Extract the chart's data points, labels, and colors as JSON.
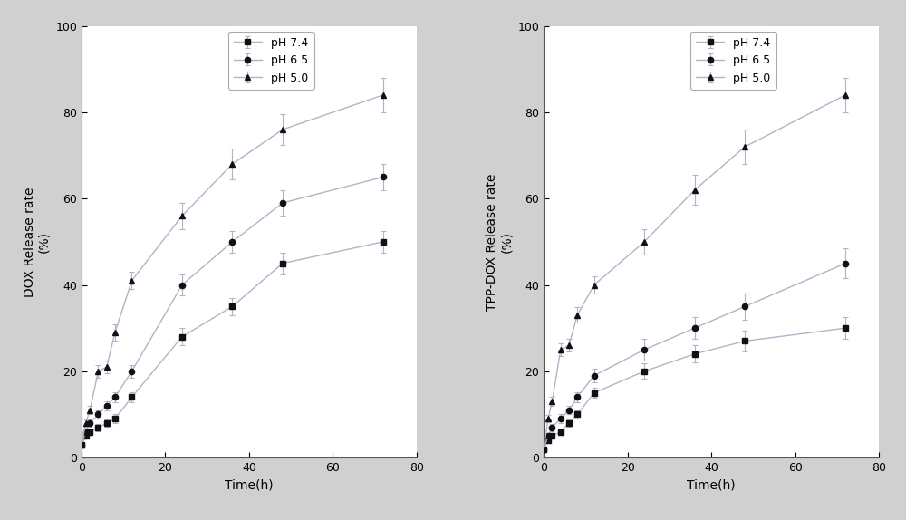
{
  "time_points": [
    0,
    1,
    2,
    4,
    6,
    8,
    12,
    24,
    36,
    48,
    72
  ],
  "dox_ph74_y": [
    3,
    5,
    6,
    7,
    8,
    9,
    14,
    28,
    35,
    45,
    50
  ],
  "dox_ph65_y": [
    3,
    6,
    8,
    10,
    12,
    14,
    20,
    40,
    50,
    59,
    65
  ],
  "dox_ph50_y": [
    3,
    8,
    11,
    20,
    21,
    29,
    41,
    56,
    68,
    76,
    84
  ],
  "dox_ph74_err": [
    0.4,
    0.6,
    0.6,
    0.8,
    0.8,
    1.0,
    1.2,
    2.0,
    2.0,
    2.5,
    2.5
  ],
  "dox_ph65_err": [
    0.4,
    0.6,
    0.8,
    1.0,
    1.0,
    1.2,
    1.5,
    2.5,
    2.5,
    3.0,
    3.0
  ],
  "dox_ph50_err": [
    0.4,
    0.8,
    1.0,
    1.5,
    1.5,
    1.8,
    2.0,
    3.0,
    3.5,
    3.5,
    4.0
  ],
  "tpp_ph74_y": [
    2,
    4,
    5,
    6,
    8,
    10,
    15,
    20,
    24,
    27,
    30
  ],
  "tpp_ph65_y": [
    2,
    5,
    7,
    9,
    11,
    14,
    19,
    25,
    30,
    35,
    45
  ],
  "tpp_ph50_y": [
    2,
    9,
    13,
    25,
    26,
    33,
    40,
    50,
    62,
    72,
    84
  ],
  "tpp_ph74_err": [
    0.4,
    0.6,
    0.6,
    0.8,
    0.8,
    1.0,
    1.2,
    1.8,
    2.0,
    2.5,
    2.5
  ],
  "tpp_ph65_err": [
    0.4,
    0.6,
    0.8,
    1.0,
    1.0,
    1.2,
    1.5,
    2.5,
    2.5,
    3.0,
    3.5
  ],
  "tpp_ph50_err": [
    0.4,
    0.8,
    1.0,
    1.5,
    1.5,
    1.8,
    2.0,
    3.0,
    3.5,
    4.0,
    4.0
  ],
  "line_color": "#b8b0c8",
  "marker_color": "#111111",
  "bg_color": "#d0d0d0",
  "plot_bg": "#ffffff",
  "ylim": [
    0,
    100
  ],
  "xlim": [
    0,
    80
  ],
  "xticks": [
    0,
    20,
    40,
    60,
    80
  ],
  "yticks": [
    0,
    20,
    40,
    60,
    80,
    100
  ],
  "xlabel": "Time(h)",
  "ylabel_left": "DOX Release rate\n(%)",
  "ylabel_right": "TPP-DOX Release rate\n(%)",
  "legend_labels": [
    "pH 7.4",
    "pH 6.5",
    "pH 5.0"
  ],
  "axis_fontsize": 10,
  "tick_fontsize": 9,
  "legend_fontsize": 9
}
